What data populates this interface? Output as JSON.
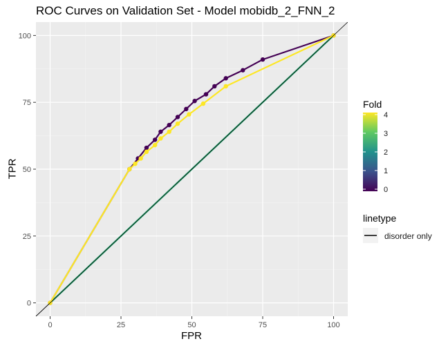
{
  "chart_data": {
    "type": "line",
    "title": "ROC Curves on Validation Set - Model mobidb_2_FNN_2",
    "xlabel": "FPR",
    "ylabel": "TPR",
    "xlim": [
      -5,
      105
    ],
    "ylim": [
      -5,
      105
    ],
    "x_ticks": [
      0,
      25,
      50,
      75,
      100
    ],
    "y_ticks": [
      0,
      25,
      50,
      75,
      100
    ],
    "grid": true,
    "legend": {
      "placement": "right",
      "color_title": "Fold",
      "color_scale": "viridis",
      "color_range": [
        0,
        4
      ],
      "color_ticks": [
        0,
        1,
        2,
        3,
        4
      ],
      "linetype_title": "linetype",
      "linetype_entries": [
        "disorder only"
      ]
    },
    "reference_line": {
      "x": [
        -5,
        105
      ],
      "y": [
        -5,
        105
      ],
      "color": "#000000"
    },
    "series": [
      {
        "fold": 0,
        "color": "#440154",
        "x": [
          0,
          28,
          31,
          34,
          37,
          39,
          42,
          45,
          48,
          51,
          55,
          58,
          62,
          68,
          75,
          100
        ],
        "y": [
          0,
          50,
          54,
          58,
          61,
          64,
          66.5,
          69.5,
          72.5,
          75.5,
          78,
          81,
          84,
          87,
          91,
          100
        ]
      },
      {
        "fold": 1,
        "color": "#31688e",
        "x": [
          0,
          100
        ],
        "y": [
          0,
          100
        ]
      },
      {
        "fold": 2,
        "color": "#21918c",
        "x": [
          0,
          100
        ],
        "y": [
          0,
          100
        ]
      },
      {
        "fold": 3,
        "color": "#35b779",
        "x": [
          0,
          100
        ],
        "y": [
          0,
          100
        ]
      },
      {
        "fold": 4,
        "color": "#fde725",
        "x": [
          0,
          28,
          30,
          32,
          34,
          37,
          39,
          42,
          45,
          49,
          54,
          62,
          100
        ],
        "y": [
          0,
          50,
          52,
          54,
          56.5,
          59,
          61.5,
          64,
          67,
          70.5,
          74.5,
          81,
          100
        ]
      }
    ]
  }
}
